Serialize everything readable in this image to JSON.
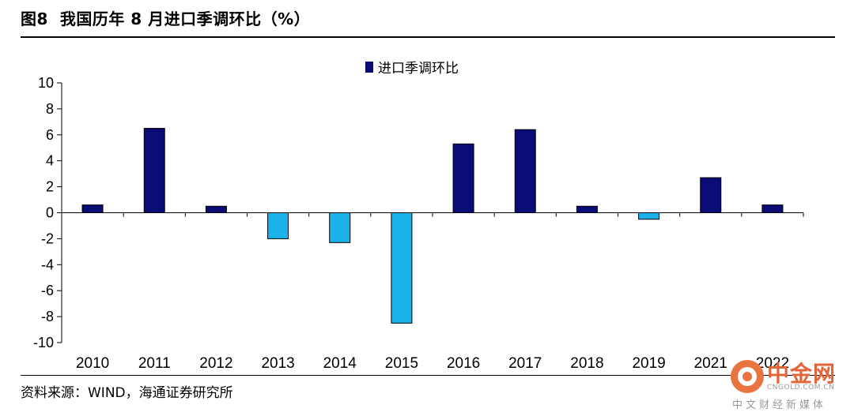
{
  "figure": {
    "title": "图8  我国历年 8 月进口季调环比（%）",
    "source": "资料来源：WIND，海通证券研究所"
  },
  "watermark": {
    "name": "中金网",
    "url": "CNGOLD.COM.CN",
    "subtitle": "中文财经新媒体"
  },
  "chart_data": {
    "type": "bar",
    "title": "",
    "xlabel": "",
    "ylabel": "",
    "categories": [
      "2010",
      "2011",
      "2012",
      "2013",
      "2014",
      "2015",
      "2016",
      "2017",
      "2018",
      "2019",
      "2021",
      "2022"
    ],
    "series": [
      {
        "name": "进口季调环比",
        "values": [
          0.6,
          6.5,
          0.5,
          -2.0,
          -2.3,
          -8.5,
          5.3,
          6.4,
          0.5,
          -0.5,
          2.7,
          0.6
        ]
      }
    ],
    "ylim": [
      -10,
      10
    ],
    "yticks": [
      10,
      8,
      6,
      4,
      2,
      0,
      -2,
      -4,
      -6,
      -8,
      -10
    ],
    "grid": false,
    "legend_position": "top-center",
    "colors": {
      "positive": "#0b0b75",
      "negative": "#1ab2e8",
      "axis": "#000000"
    }
  }
}
